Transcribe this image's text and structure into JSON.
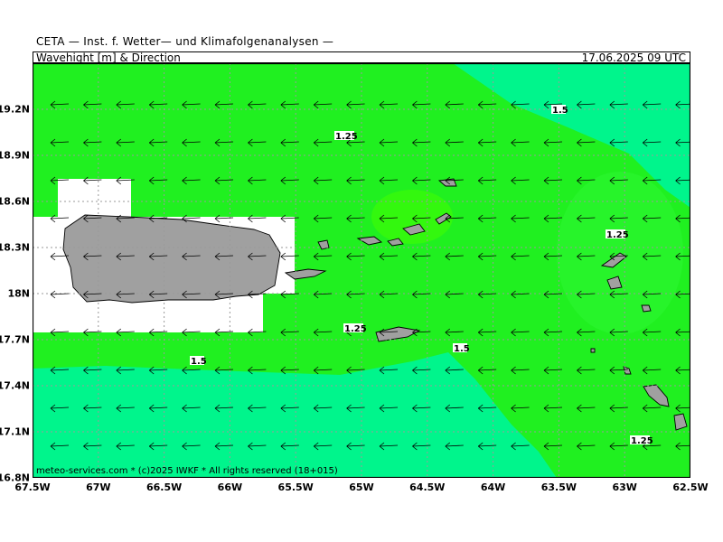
{
  "header": {
    "title": "CETA — Inst. f. Wetter— und Klimafolgenanalysen —",
    "parameter": "Wavehight [m] & Direction",
    "datetime": "17.06.2025 09 UTC"
  },
  "footer": {
    "copyright": "meteo-services.com * (c)2025 IWKF * All rights reserved (18+015)"
  },
  "axes": {
    "x_ticks": [
      "67.5W",
      "67W",
      "66.5W",
      "66W",
      "65.5W",
      "65W",
      "64.5W",
      "64W",
      "63.5W",
      "63W",
      "62.5W"
    ],
    "y_ticks": [
      "19.2N",
      "18.9N",
      "18.6N",
      "18.3N",
      "18N",
      "17.7N",
      "17.4N",
      "17.1N",
      "16.8N"
    ],
    "lon_range": [
      -67.5,
      -62.5
    ],
    "lat_range": [
      16.8,
      19.5
    ]
  },
  "contour_labels": [
    "1.5",
    "1.25",
    "1.25",
    "1.25",
    "1.5",
    "1.5",
    "1.25"
  ],
  "arrow_direction": "westward",
  "colors": {
    "lower_band": "#00f58c",
    "middle_band": "#20f020",
    "upper_band": "#44ff00",
    "land": "#a0a0a0",
    "no_data": "#ffffff",
    "grid": "#9a9a9a"
  }
}
